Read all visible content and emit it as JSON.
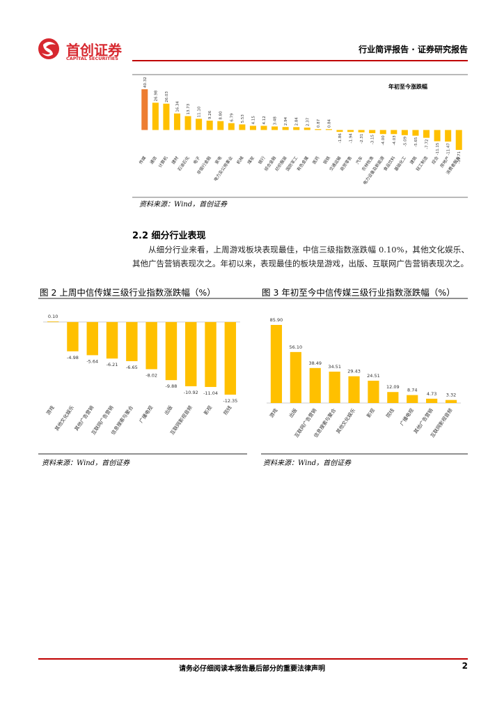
{
  "header": {
    "logo_cn": "首创证券",
    "logo_en": "CAPITAL SECURITIES",
    "report_type": "行业简评报告 · 证券研究报告"
  },
  "chart_data": [
    {
      "type": "bar",
      "title": "年初至今涨跌幅",
      "categories": [
        "传媒",
        "通信",
        "计算机",
        "建材",
        "石油石化",
        "电子",
        "非银行金融",
        "家电",
        "电力及公用事业",
        "机械",
        "煤炭",
        "银行",
        "综合金融",
        "纺织服装",
        "国防军工",
        "有色金属",
        "医药",
        "钢铁",
        "交通运输",
        "商贸零售",
        "汽车",
        "农林牧渔",
        "电力设备及新能源",
        "食品饮料",
        "基础化工",
        "建筑",
        "轻工制造",
        "综合",
        "房地产",
        "消费者服务"
      ],
      "values": [
        40.32,
        26.98,
        26.03,
        16.34,
        13.73,
        11.1,
        9.26,
        8.8,
        6.79,
        5.53,
        4.15,
        4.12,
        3.48,
        2.94,
        2.84,
        2.37,
        0.87,
        0.84,
        -1.86,
        -1.94,
        -2.31,
        -3.15,
        -4.0,
        -4.03,
        -5.09,
        -5.65,
        -7.72,
        -11.15,
        -11.47,
        -19.71
      ],
      "value_labels": [
        "40.32",
        "26.98",
        "26.03",
        "16.34",
        "13.73",
        "11.10",
        "9.26",
        "8.80",
        "6.79",
        "5.53",
        "4.15",
        "4.12",
        "3.48",
        "2.94",
        "2.84",
        "2.37",
        "0.87",
        "0.84",
        "-1.86",
        "-1.94",
        "-2.31",
        "-3.15",
        "-4.00",
        "-4.03",
        "-5.09",
        "-5.65",
        "-7.72",
        "-11.15",
        "-11.47",
        "-19.71"
      ],
      "colors": [
        "#ED7D31",
        "#FFC000",
        "#FFC000",
        "#FFC000",
        "#FFC000",
        "#FFC000",
        "#FFC000",
        "#FFC000",
        "#FFC000",
        "#FFC000",
        "#FFC000",
        "#FFC000",
        "#FFC000",
        "#FFC000",
        "#FFC000",
        "#FFC000",
        "#FFC000",
        "#FFC000",
        "#FFC000",
        "#FFC000",
        "#FFC000",
        "#FFC000",
        "#FFC000",
        "#FFC000",
        "#FFC000",
        "#FFC000",
        "#FFC000",
        "#FFC000",
        "#FFC000",
        "#FFC000"
      ],
      "source": "资料来源：Wind，首创证券"
    },
    {
      "type": "bar",
      "title": "图 2 上周中信传媒三级行业指数涨跌幅（%）",
      "categories": [
        "游戏",
        "其他文化娱乐",
        "其他广告营销",
        "互联网广告营销",
        "信息搜索与聚合",
        "广播电视",
        "出版",
        "互联网影视音频",
        "影视",
        "院线"
      ],
      "values": [
        0.1,
        -4.98,
        -5.64,
        -6.21,
        -6.65,
        -8.02,
        -9.88,
        -10.92,
        -11.04,
        -12.35
      ],
      "value_labels": [
        "0.10",
        "-4.98",
        "-5.64",
        "-6.21",
        "-6.65",
        "-8.02",
        "-9.88",
        "-10.92",
        "-11.04",
        "-12.35"
      ],
      "color": "#FFC000",
      "source": "资料来源：Wind，首创证券"
    },
    {
      "type": "bar",
      "title": "图 3 年初至今中信传媒三级行业指数涨跌幅（%）",
      "categories": [
        "游戏",
        "出版",
        "互联网广告营销",
        "信息搜索与聚合",
        "其他文化娱乐",
        "影视",
        "院线",
        "广播电视",
        "其他广告营销",
        "互联网影视音频"
      ],
      "values": [
        85.9,
        56.1,
        38.49,
        34.51,
        29.43,
        24.51,
        12.09,
        8.74,
        4.73,
        3.32
      ],
      "value_labels": [
        "85.90",
        "56.10",
        "38.49",
        "34.51",
        "29.43",
        "24.51",
        "12.09",
        "8.74",
        "4.73",
        "3.32"
      ],
      "color": "#FFC000",
      "source": "资料来源：Wind，首创证券"
    }
  ],
  "section": {
    "heading": "2.2 细分行业表现",
    "paragraph": "从细分行业来看，上周游戏板块表现最佳，中信三级指数涨跌幅 0.10%，其他文化娱乐、其他广告营销表现次之。年初以来，表现最佳的板块是游戏，出版、互联网广告营销表现次之。"
  },
  "footer": {
    "disclaimer": "请务必仔细阅读本报告最后部分的重要法律声明",
    "page": "2"
  }
}
